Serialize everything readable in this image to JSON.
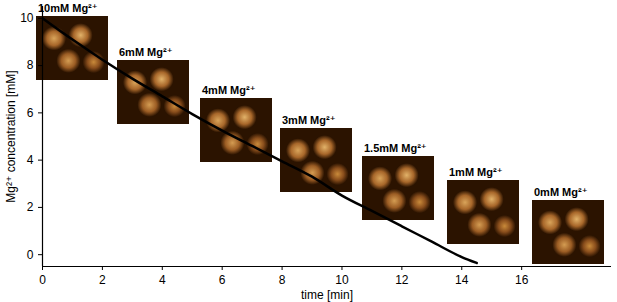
{
  "chart_data": {
    "type": "line",
    "x_label": "time [min]",
    "y_label": "Mg²⁺ concentration [mM]",
    "x": [
      0,
      1,
      2,
      3,
      4,
      5,
      6,
      7,
      8,
      9,
      10,
      11,
      12,
      13,
      14,
      14.5
    ],
    "values": [
      10,
      9.1,
      8.25,
      7.45,
      6.7,
      5.95,
      5.25,
      4.6,
      3.95,
      3.3,
      2.5,
      1.85,
      1.2,
      0.55,
      -0.1,
      -0.35
    ],
    "color": "#000000",
    "xlim": [
      0,
      19
    ],
    "ylim": [
      -0.5,
      10.5
    ],
    "xticks": [
      0,
      2,
      4,
      6,
      8,
      10,
      12,
      14,
      16
    ],
    "yticks": [
      0,
      2,
      4,
      6,
      8,
      10
    ],
    "annotations": [
      "10mM Mg²⁺",
      "6mM Mg²⁺",
      "4mM Mg²⁺",
      "3mM Mg²⁺",
      "1.5mM Mg²⁺",
      "1mM Mg²⁺",
      "0mM Mg²⁺"
    ]
  }
}
